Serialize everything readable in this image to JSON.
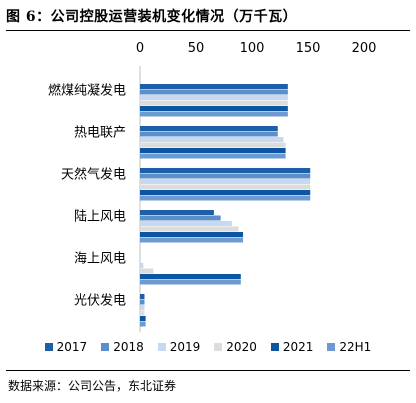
{
  "title": "图 6：公司控股运营装机变化情况（万千瓦）",
  "source": "数据来源：公司公告，东北证券",
  "chart_data": {
    "type": "bar",
    "orientation": "horizontal",
    "title": "图 6：公司控股运营装机变化情况（万千瓦）",
    "xlabel": "",
    "ylabel": "",
    "xlim": [
      0,
      200
    ],
    "x_ticks": [
      "0",
      "50",
      "100",
      "150",
      "200"
    ],
    "grid": false,
    "legend_position": "bottom",
    "categories": [
      "燃煤纯凝发电",
      "热电联产",
      "天然气发电",
      "陆上风电",
      "海上风电",
      "光伏发电"
    ],
    "series": [
      {
        "name": "2017",
        "color": "#1f5fa8",
        "values": [
          132,
          123,
          152,
          66,
          0,
          4
        ]
      },
      {
        "name": "2018",
        "color": "#5b8fc9",
        "values": [
          132,
          123,
          152,
          72,
          0,
          4
        ]
      },
      {
        "name": "2019",
        "color": "#c6d9ef",
        "values": [
          132,
          128,
          152,
          82,
          3,
          4
        ]
      },
      {
        "name": "2020",
        "color": "#dcdcdc",
        "values": [
          132,
          130,
          152,
          88,
          12,
          4
        ]
      },
      {
        "name": "2021",
        "color": "#0b55a3",
        "values": [
          132,
          130,
          152,
          92,
          90,
          5
        ]
      },
      {
        "name": "22H1",
        "color": "#6d9bd1",
        "values": [
          132,
          130,
          152,
          92,
          90,
          5
        ]
      }
    ]
  }
}
